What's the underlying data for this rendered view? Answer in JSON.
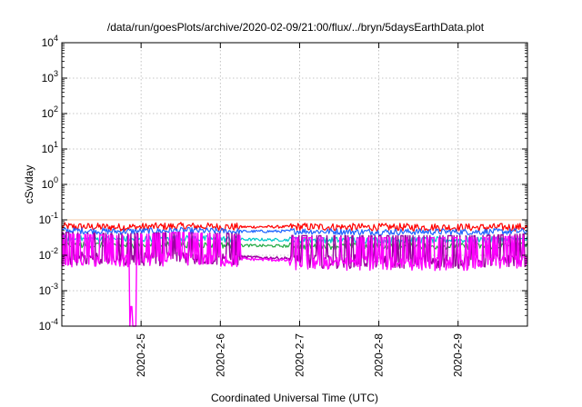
{
  "chart_data": {
    "type": "line",
    "title": "/data/run/goesPlots/archive/2020-02-09/21:00/flux/../bryn/5daysEarthData.plot",
    "xlabel": "Coordinated Universal Time (UTC)",
    "ylabel": "cSv/day",
    "x_domain": [
      "2020-02-04T00:00",
      "2020-02-09T21:00"
    ],
    "x_ticks": [
      {
        "label": "2020-2-5",
        "date": "2020-02-05"
      },
      {
        "label": "2020-2-6",
        "date": "2020-02-06"
      },
      {
        "label": "2020-2-7",
        "date": "2020-02-07"
      },
      {
        "label": "2020-2-8",
        "date": "2020-02-08"
      },
      {
        "label": "2020-2-9",
        "date": "2020-02-09"
      }
    ],
    "y_scale": "log",
    "ylim": [
      0.0001,
      10000
    ],
    "y_ticks": [
      {
        "base": "10",
        "exp": "-4",
        "value": 0.0001
      },
      {
        "base": "10",
        "exp": "-3",
        "value": 0.001
      },
      {
        "base": "10",
        "exp": "-2",
        "value": 0.01
      },
      {
        "base": "10",
        "exp": "-1",
        "value": 0.1
      },
      {
        "base": "10",
        "exp": "0",
        "value": 1
      },
      {
        "base": "10",
        "exp": "1",
        "value": 10
      },
      {
        "base": "10",
        "exp": "2",
        "value": 100
      },
      {
        "base": "10",
        "exp": "3",
        "value": 1000
      },
      {
        "base": "10",
        "exp": "4",
        "value": 10000
      }
    ],
    "grid": true,
    "reference_line": {
      "y": 0.1,
      "color": "#f4c8a6"
    },
    "series": [
      {
        "color": "#ff0000",
        "values": [
          0.065,
          0.062,
          0.066,
          0.063,
          0.064,
          0.062,
          0.062,
          0.061,
          0.063
        ]
      },
      {
        "color": "#1e64ff",
        "values": [
          0.05,
          0.047,
          0.05,
          0.047,
          0.048,
          0.046,
          0.046,
          0.046,
          0.047
        ]
      },
      {
        "color": "#00c8c8",
        "values": [
          0.03,
          0.028,
          0.03,
          0.028,
          0.027,
          0.027,
          0.027,
          0.027,
          0.028
        ]
      },
      {
        "color": "#22aa44",
        "values": [
          0.02,
          0.019,
          0.02,
          0.019,
          0.018,
          0.018,
          0.018,
          0.018,
          0.019
        ]
      },
      {
        "color": "#9a00a0",
        "values": [
          0.01,
          0.009,
          0.01,
          0.009,
          0.008,
          0.008,
          0.008,
          0.008,
          0.009
        ]
      },
      {
        "color": "#ff00ff",
        "values": [
          0.009,
          0.008,
          0.01,
          0.008,
          0.007,
          0.007,
          0.007,
          0.007,
          0.008
        ]
      }
    ],
    "series_x": [
      "2020-02-04T00:00",
      "2020-02-04T18:00",
      "2020-02-05T12:00",
      "2020-02-06T06:00",
      "2020-02-07T00:00",
      "2020-02-07T18:00",
      "2020-02-08T12:00",
      "2020-02-09T06:00",
      "2020-02-09T21:00"
    ]
  }
}
